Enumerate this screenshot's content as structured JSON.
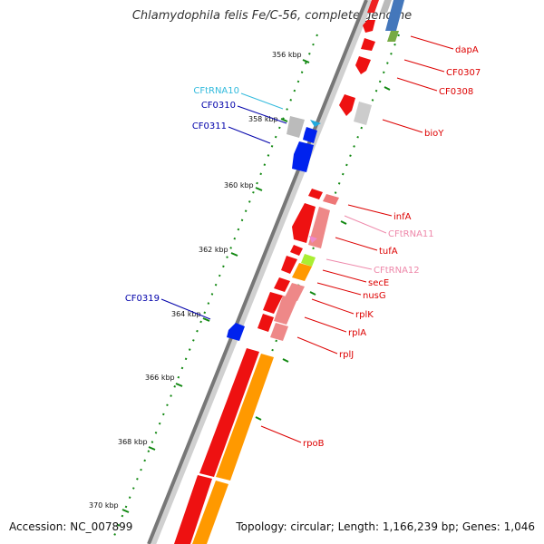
{
  "title": "Chlamydophila felis Fe/C-56, complete genome",
  "footer": {
    "accession": "Accession: NC_007899",
    "topology": "Topology: circular; Length: 1,166,239 bp; Genes: 1,046"
  },
  "ticks": [
    "356 kbp",
    "358 kbp",
    "360 kbp",
    "362 kbp",
    "364 kbp",
    "366 kbp",
    "368 kbp",
    "370 kbp"
  ],
  "genes": [
    {
      "name": "dapA",
      "color": "#dd0000"
    },
    {
      "name": "CF0307",
      "color": "#dd0000"
    },
    {
      "name": "CF0308",
      "color": "#dd0000"
    },
    {
      "name": "bioY",
      "color": "#dd0000"
    },
    {
      "name": "infA",
      "color": "#dd0000"
    },
    {
      "name": "CFtRNA11",
      "color": "#ee88aa"
    },
    {
      "name": "tufA",
      "color": "#dd0000"
    },
    {
      "name": "CFtRNA12",
      "color": "#ee88aa"
    },
    {
      "name": "secE",
      "color": "#dd0000"
    },
    {
      "name": "nusG",
      "color": "#dd0000"
    },
    {
      "name": "rplK",
      "color": "#dd0000"
    },
    {
      "name": "rplA",
      "color": "#dd0000"
    },
    {
      "name": "rplJ",
      "color": "#dd0000"
    },
    {
      "name": "rpoB",
      "color": "#dd0000"
    },
    {
      "name": "CFtRNA10",
      "color": "#33bbdd"
    },
    {
      "name": "CF0310",
      "color": "#0000aa"
    },
    {
      "name": "CF0311",
      "color": "#0000aa"
    },
    {
      "name": "CF0319",
      "color": "#0000aa"
    }
  ]
}
